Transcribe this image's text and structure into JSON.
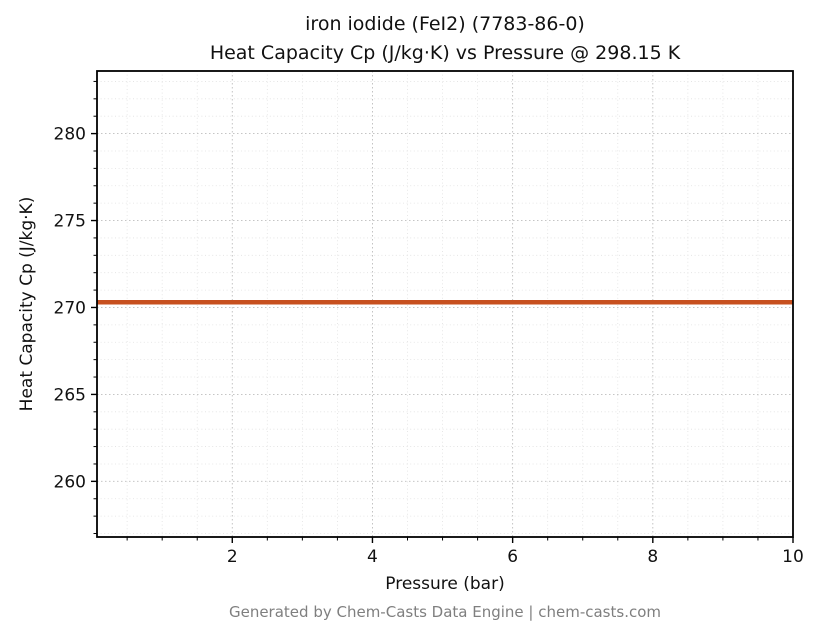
{
  "chart_data": {
    "type": "line",
    "title_line1": "iron iodide (FeI2) (7783-86-0)",
    "title_line2": "Heat Capacity Cp (J/kg·K) vs Pressure @ 298.15 K",
    "xlabel": "Pressure (bar)",
    "ylabel": "Heat Capacity Cp (J/kg·K)",
    "footer": "Generated by Chem-Casts Data Engine | chem-casts.com",
    "series": [
      {
        "name": "Cp",
        "color": "#c7501f",
        "x": [
          0.07,
          10.0
        ],
        "y": [
          270.3,
          270.3
        ]
      }
    ],
    "xlim": [
      0.07,
      10.0
    ],
    "ylim": [
      256.8,
      283.6
    ],
    "xticks": [
      2,
      4,
      6,
      8,
      10
    ],
    "yticks": [
      260,
      265,
      270,
      275,
      280
    ],
    "x_minor_step": 0.5,
    "y_minor_step": 1,
    "grid": true,
    "legend": "none",
    "frame_color": "#000000",
    "major_grid_color": "#bdbdbd",
    "minor_grid_color": "#e1e1e1"
  }
}
